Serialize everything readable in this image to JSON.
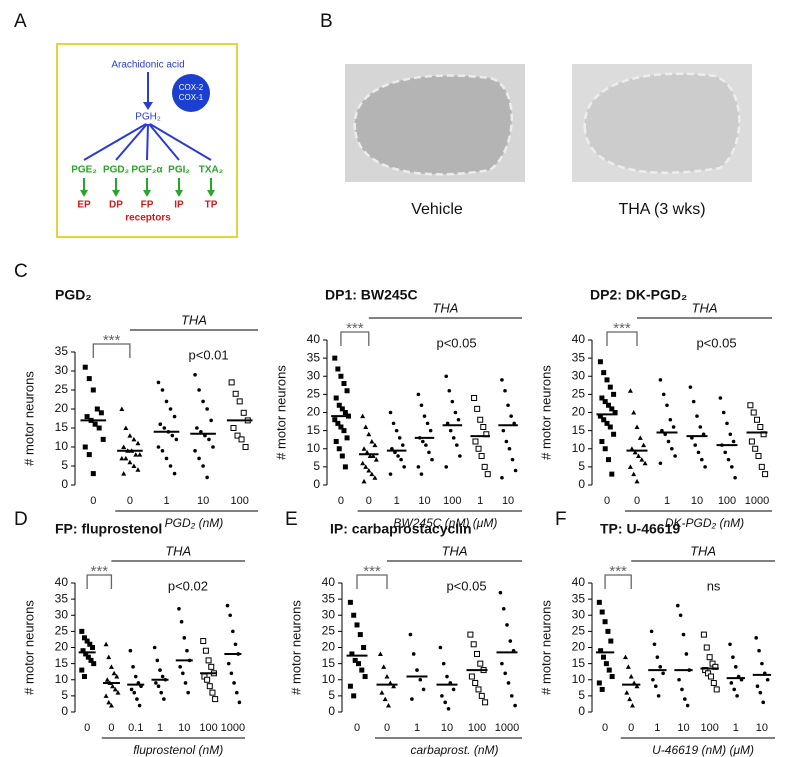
{
  "panels": {
    "A": "A",
    "B": "B",
    "C": "C",
    "D": "D",
    "E": "E",
    "F": "F"
  },
  "diagram": {
    "substrate": "Arachidonic acid",
    "enzymes": [
      "COX-2",
      "COX-1"
    ],
    "intermediate": "PGH₂",
    "products": [
      "PGE₂",
      "PGD₂",
      "PGF₂α",
      "PGI₂",
      "TXA₂"
    ],
    "receptors": [
      "EP",
      "DP",
      "FP",
      "IP",
      "TP"
    ],
    "receptors_label": "receptors"
  },
  "images": [
    {
      "caption": "Vehicle"
    },
    {
      "caption": "THA (3 wks)"
    }
  ],
  "chart_data": [
    {
      "type": "strip",
      "title": "PGD₂",
      "ylabel": "# motor neurons",
      "ylim": [
        0,
        35
      ],
      "yticks": [
        0,
        5,
        10,
        15,
        20,
        25,
        30,
        35
      ],
      "bracket": "***",
      "group_label": "THA",
      "significance": "p<0.01",
      "xlabel": "PGD₂ (nM)",
      "groups": [
        {
          "label": "0",
          "marker": "square",
          "mean": 17,
          "values": [
            31,
            28,
            25,
            20,
            19,
            18,
            17,
            16,
            15,
            12,
            10,
            8,
            3
          ]
        },
        {
          "label": "0",
          "marker": "triangle",
          "mean": 9,
          "values": [
            20,
            15,
            13,
            12,
            11,
            10,
            9,
            9,
            8,
            8,
            7,
            7,
            6,
            5,
            4,
            3
          ]
        },
        {
          "label": "1",
          "marker": "dot",
          "mean": 14,
          "values": [
            27,
            25,
            22,
            20,
            18,
            16,
            15,
            14,
            13,
            12,
            10,
            9,
            7,
            5,
            3
          ]
        },
        {
          "label": "10",
          "marker": "dot",
          "mean": 13.5,
          "values": [
            29,
            25,
            22,
            20,
            17,
            15,
            14,
            13,
            12,
            10,
            9,
            7,
            5,
            2
          ]
        },
        {
          "label": "100",
          "marker": "open-square",
          "mean": 17,
          "values": [
            27,
            24,
            22,
            19,
            17,
            15,
            13,
            12,
            10
          ]
        }
      ]
    },
    {
      "type": "strip",
      "title": "DP1: BW245C",
      "ylabel": "# motor neurons",
      "ylim": [
        0,
        40
      ],
      "yticks": [
        0,
        5,
        10,
        15,
        20,
        25,
        30,
        35,
        40
      ],
      "bracket": "***",
      "group_label": "THA",
      "significance": "p<0.05",
      "xlabel": "BW245C (nM) (μM)",
      "groups": [
        {
          "label": "0",
          "marker": "square",
          "mean": 19,
          "values": [
            35,
            32,
            30,
            28,
            26,
            24,
            22,
            21,
            20,
            19,
            18,
            17,
            16,
            15,
            13,
            12,
            10,
            8,
            5
          ]
        },
        {
          "label": "0",
          "marker": "triangle",
          "mean": 8.5,
          "values": [
            19,
            16,
            14,
            12,
            11,
            10,
            9,
            8,
            8,
            7,
            6,
            5,
            4,
            3,
            2,
            1
          ]
        },
        {
          "label": "1",
          "marker": "dot",
          "mean": 9.5,
          "values": [
            20,
            17,
            15,
            13,
            11,
            10,
            9,
            8,
            7,
            5,
            3
          ]
        },
        {
          "label": "10",
          "marker": "dot",
          "mean": 13,
          "values": [
            25,
            22,
            19,
            17,
            15,
            13,
            12,
            11,
            9,
            7,
            5,
            3
          ]
        },
        {
          "label": "100",
          "marker": "dot",
          "mean": 16.5,
          "values": [
            30,
            26,
            23,
            20,
            18,
            17,
            15,
            13,
            11,
            8,
            5
          ]
        },
        {
          "label": "1",
          "marker": "open-square",
          "mean": 13.5,
          "values": [
            24,
            21,
            18,
            16,
            14,
            12,
            10,
            8,
            5,
            3
          ]
        },
        {
          "label": "10",
          "marker": "dot",
          "mean": 16.5,
          "values": [
            29,
            26,
            22,
            19,
            17,
            15,
            12,
            10,
            7,
            4,
            2
          ]
        }
      ]
    },
    {
      "type": "strip",
      "title": "DP2: DK-PGD₂",
      "ylabel": "# motor neurons",
      "ylim": [
        0,
        40
      ],
      "yticks": [
        0,
        5,
        10,
        15,
        20,
        25,
        30,
        35,
        40
      ],
      "bracket": "***",
      "group_label": "THA",
      "significance": "p<0.05",
      "xlabel": "DK-PGD₂ (nM)",
      "groups": [
        {
          "label": "0",
          "marker": "square",
          "mean": 19.5,
          "values": [
            34,
            31,
            29,
            27,
            25,
            24,
            23,
            22,
            21,
            20,
            19,
            18,
            17,
            16,
            14,
            12,
            10,
            7,
            3
          ]
        },
        {
          "label": "0",
          "marker": "triangle",
          "mean": 9.5,
          "values": [
            26,
            20,
            16,
            13,
            11,
            10,
            9,
            8,
            7,
            6,
            5,
            3,
            1
          ]
        },
        {
          "label": "1",
          "marker": "dot",
          "mean": 14.5,
          "values": [
            29,
            25,
            22,
            18,
            16,
            15,
            14,
            12,
            10,
            8,
            6
          ]
        },
        {
          "label": "10",
          "marker": "dot",
          "mean": 13.5,
          "values": [
            27,
            23,
            19,
            16,
            14,
            13,
            11,
            9,
            7,
            5
          ]
        },
        {
          "label": "100",
          "marker": "dot",
          "mean": 11,
          "values": [
            24,
            20,
            17,
            14,
            12,
            11,
            9,
            7,
            5,
            2
          ]
        },
        {
          "label": "1000",
          "marker": "open-square",
          "mean": 14.5,
          "values": [
            22,
            20,
            18,
            16,
            14,
            12,
            10,
            8,
            5,
            3
          ]
        }
      ]
    },
    {
      "type": "strip",
      "title": "FP: fluprostenol",
      "ylabel": "# motor neurons",
      "ylim": [
        0,
        40
      ],
      "yticks": [
        0,
        5,
        10,
        15,
        20,
        25,
        30,
        35,
        40
      ],
      "bracket": "***",
      "group_label": "THA",
      "significance": "p<0.02",
      "xlabel": "fluprostenol (nM)",
      "groups": [
        {
          "label": "0",
          "marker": "square",
          "mean": 18.5,
          "values": [
            25,
            23,
            22,
            21,
            20,
            19,
            18,
            17,
            16,
            15,
            13,
            11
          ]
        },
        {
          "label": "0",
          "marker": "triangle",
          "mean": 9,
          "values": [
            21,
            17,
            14,
            12,
            11,
            10,
            9,
            8,
            7,
            6,
            5,
            3,
            2
          ]
        },
        {
          "label": "0.1",
          "marker": "dot",
          "mean": 8.5,
          "values": [
            19,
            14,
            11,
            9,
            8,
            7,
            6,
            4,
            2
          ]
        },
        {
          "label": "1",
          "marker": "dot",
          "mean": 10,
          "values": [
            20,
            16,
            13,
            11,
            10,
            9,
            8,
            6,
            4
          ]
        },
        {
          "label": "10",
          "marker": "dot",
          "mean": 16,
          "values": [
            32,
            28,
            23,
            19,
            16,
            14,
            12,
            9,
            6
          ]
        },
        {
          "label": "100",
          "marker": "open-square",
          "mean": 12,
          "values": [
            22,
            19,
            16,
            14,
            12,
            11,
            10,
            8,
            6,
            4
          ]
        },
        {
          "label": "1000",
          "marker": "dot",
          "mean": 18,
          "values": [
            33,
            30,
            25,
            21,
            18,
            15,
            12,
            9,
            6,
            3
          ]
        }
      ]
    },
    {
      "type": "strip",
      "title": "IP: carbaprostacyclin",
      "ylabel": "# motor neurons",
      "ylim": [
        0,
        40
      ],
      "yticks": [
        0,
        5,
        10,
        15,
        20,
        25,
        30,
        35,
        40
      ],
      "bracket": "***",
      "group_label": "THA",
      "significance": "p<0.05",
      "xlabel": "carbaprost. (nM)",
      "groups": [
        {
          "label": "0",
          "marker": "square",
          "mean": 17.5,
          "values": [
            34,
            30,
            27,
            24,
            20,
            18,
            16,
            15,
            13,
            11,
            8,
            5
          ]
        },
        {
          "label": "0",
          "marker": "triangle",
          "mean": 8.5,
          "values": [
            18,
            14,
            11,
            9,
            8,
            6,
            4,
            2
          ]
        },
        {
          "label": "1",
          "marker": "dot",
          "mean": 11,
          "values": [
            24,
            18,
            13,
            10,
            7,
            4
          ]
        },
        {
          "label": "10",
          "marker": "dot",
          "mean": 8.5,
          "values": [
            20,
            15,
            11,
            9,
            7,
            5,
            3,
            1
          ]
        },
        {
          "label": "100",
          "marker": "open-square",
          "mean": 13,
          "values": [
            24,
            21,
            18,
            15,
            13,
            11,
            9,
            7,
            5,
            3
          ]
        },
        {
          "label": "1000",
          "marker": "dot",
          "mean": 18.5,
          "values": [
            37,
            32,
            27,
            22,
            19,
            15,
            12,
            9,
            5,
            2
          ]
        }
      ]
    },
    {
      "type": "strip",
      "title": "TP: U-46619",
      "ylabel": "# motor neurons",
      "ylim": [
        0,
        40
      ],
      "yticks": [
        0,
        5,
        10,
        15,
        20,
        25,
        30,
        35,
        40
      ],
      "bracket": "***",
      "group_label": "THA",
      "significance": "ns",
      "xlabel": "U-46619 (nM) (μM)",
      "groups": [
        {
          "label": "0",
          "marker": "square",
          "mean": 18.5,
          "values": [
            34,
            31,
            28,
            25,
            22,
            19,
            17,
            15,
            13,
            11,
            9,
            7
          ]
        },
        {
          "label": "0",
          "marker": "triangle",
          "mean": 8.5,
          "values": [
            17,
            14,
            11,
            9,
            8,
            6,
            4,
            2
          ]
        },
        {
          "label": "1",
          "marker": "dot",
          "mean": 13,
          "values": [
            25,
            21,
            17,
            14,
            12,
            10,
            8,
            5
          ]
        },
        {
          "label": "10",
          "marker": "dot",
          "mean": 13,
          "values": [
            33,
            30,
            24,
            18,
            13,
            10,
            7,
            4,
            2
          ]
        },
        {
          "label": "100",
          "marker": "open-square",
          "mean": 13.5,
          "values": [
            24,
            20,
            17,
            15,
            14,
            13,
            12,
            11,
            9,
            7
          ]
        },
        {
          "label": "1",
          "marker": "dot",
          "mean": 10.5,
          "values": [
            21,
            17,
            14,
            11,
            10,
            9,
            7,
            5
          ]
        },
        {
          "label": "10",
          "marker": "dot",
          "mean": 11.5,
          "values": [
            23,
            19,
            15,
            12,
            10,
            8,
            6,
            3
          ]
        }
      ]
    }
  ]
}
